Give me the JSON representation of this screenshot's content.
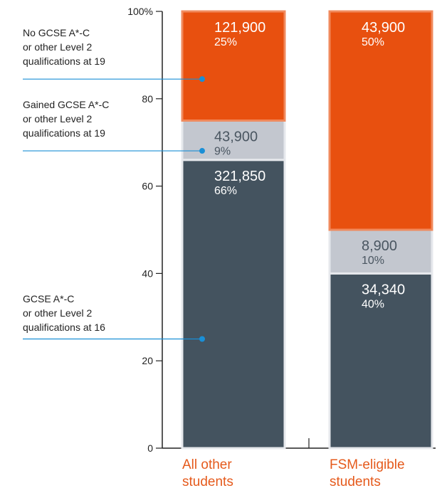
{
  "chart_data": {
    "type": "bar",
    "stacked": true,
    "title": "",
    "xlabel": "",
    "ylabel": "",
    "ylim": [
      0,
      100
    ],
    "yticks": [
      0,
      20,
      40,
      60,
      80,
      100
    ],
    "ytick_labels": [
      "0",
      "20",
      "40",
      "60",
      "80",
      "100%"
    ],
    "categories": [
      "All other students",
      "FSM-eligible students"
    ],
    "category_lines": [
      [
        "All other",
        "students"
      ],
      [
        "FSM-eligible",
        "students"
      ]
    ],
    "grid": false,
    "series": [
      {
        "key": "at16",
        "color": "#44535f",
        "text_color": "#ffffff",
        "values": [
          66,
          40
        ],
        "counts": [
          "321,850",
          "34,340"
        ],
        "pct_labels": [
          "66%",
          "40%"
        ]
      },
      {
        "key": "gained19",
        "color": "#c3c7cf",
        "text_color": "#4a5661",
        "values": [
          9,
          10
        ],
        "counts": [
          "43,900",
          "8,900"
        ],
        "pct_labels": [
          "9%",
          "10%"
        ]
      },
      {
        "key": "no19",
        "color": "#e8500f",
        "text_color": "#ffffff",
        "values": [
          25,
          50
        ],
        "counts": [
          "121,900",
          "43,900"
        ],
        "pct_labels": [
          "25%",
          "50%"
        ]
      }
    ],
    "legend": [
      {
        "series": "no19",
        "lines": [
          "No GCSE A*-C",
          "or other Level 2",
          "qualifications at 19"
        ]
      },
      {
        "series": "gained19",
        "lines": [
          "Gained GCSE A*-C",
          "or other Level 2",
          "qualifications at 19"
        ]
      },
      {
        "series": "at16",
        "lines": [
          "GCSE A*-C",
          "or other Level 2",
          "qualifications at 16"
        ]
      }
    ],
    "legend_placement": "left",
    "colors": {
      "accent": "#e55a1c",
      "leader": "#1a8fd6",
      "axis": "#222222",
      "bar_border": "#f08a5d"
    }
  }
}
